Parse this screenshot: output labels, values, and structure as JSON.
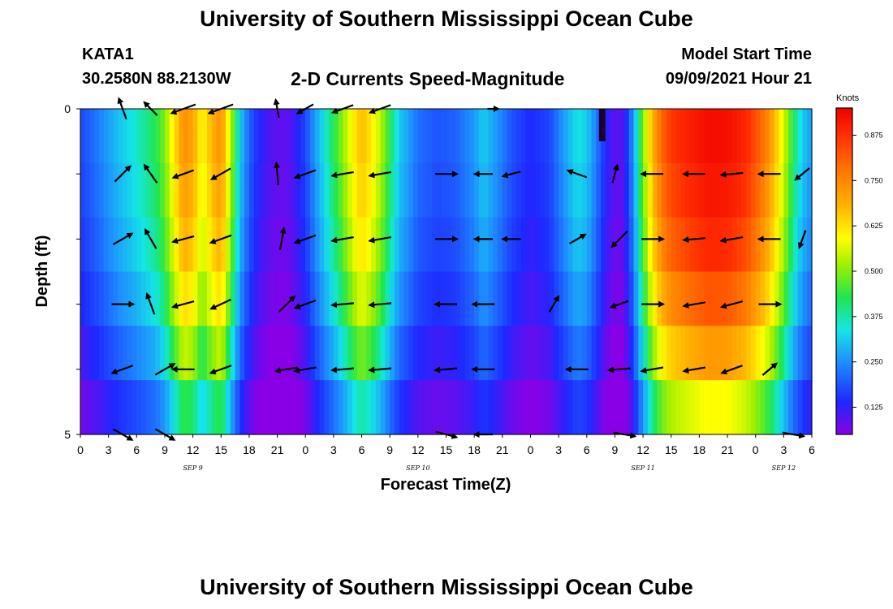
{
  "header": {
    "title": "University of Southern Mississippi Ocean Cube",
    "station_id": "KATA1",
    "station_coords": "30.2580N  88.2130W",
    "chart_title": "2-D Currents Speed-Magnitude",
    "model_start_label": "Model Start Time",
    "model_start_value": "09/09/2021 Hour 21"
  },
  "footer": {
    "title": "University of Southern Mississippi Ocean Cube"
  },
  "chart_data": {
    "type": "heatmap",
    "title": "2-D Currents Speed-Magnitude",
    "xlabel": "Forecast Time(Z)",
    "ylabel": "Depth (ft)",
    "x_tick_labels": [
      "0",
      "3",
      "6",
      "9",
      "12",
      "15",
      "18",
      "21",
      "0",
      "3",
      "6",
      "9",
      "12",
      "15",
      "18",
      "21",
      "0",
      "3",
      "6",
      "9",
      "12",
      "15",
      "18",
      "21",
      "0",
      "3",
      "6"
    ],
    "x_range_hours": [
      0,
      78
    ],
    "date_labels": [
      {
        "label": "SEP 9",
        "hour": 12
      },
      {
        "label": "SEP 10",
        "hour": 36
      },
      {
        "label": "SEP 11",
        "hour": 60
      },
      {
        "label": "SEP 12",
        "hour": 75
      }
    ],
    "y_tick_labels": [
      "0",
      "5"
    ],
    "y_range": [
      0,
      5
    ],
    "depth_levels": [
      0,
      1,
      2,
      3,
      4,
      5
    ],
    "colorbar": {
      "label": "Knots",
      "ticks": [
        "0.125",
        "0.250",
        "0.375",
        "0.500",
        "0.625",
        "0.750",
        "0.875"
      ],
      "range": [
        0.05,
        0.95
      ]
    },
    "speed_profile_knots": [
      [
        0,
        0.12
      ],
      [
        2,
        0.16
      ],
      [
        4,
        0.21
      ],
      [
        6,
        0.25
      ],
      [
        8,
        0.3
      ],
      [
        9,
        0.36
      ],
      [
        10,
        0.48
      ],
      [
        11,
        0.62
      ],
      [
        12,
        0.58
      ],
      [
        13,
        0.45
      ],
      [
        14,
        0.55
      ],
      [
        15,
        0.62
      ],
      [
        16,
        0.4
      ],
      [
        17,
        0.22
      ],
      [
        18,
        0.14
      ],
      [
        19,
        0.1
      ],
      [
        20,
        0.08
      ],
      [
        21,
        0.07
      ],
      [
        22,
        0.07
      ],
      [
        23,
        0.09
      ],
      [
        24,
        0.12
      ],
      [
        25,
        0.18
      ],
      [
        26,
        0.24
      ],
      [
        27,
        0.3
      ],
      [
        28,
        0.37
      ],
      [
        29,
        0.46
      ],
      [
        30,
        0.54
      ],
      [
        31,
        0.48
      ],
      [
        32,
        0.4
      ],
      [
        33,
        0.3
      ],
      [
        34,
        0.22
      ],
      [
        36,
        0.15
      ],
      [
        38,
        0.13
      ],
      [
        40,
        0.14
      ],
      [
        42,
        0.18
      ],
      [
        43,
        0.22
      ],
      [
        44,
        0.19
      ],
      [
        46,
        0.13
      ],
      [
        48,
        0.1
      ],
      [
        50,
        0.12
      ],
      [
        52,
        0.2
      ],
      [
        53,
        0.24
      ],
      [
        54,
        0.22
      ],
      [
        55,
        0.16
      ],
      [
        56,
        0.1
      ],
      [
        57,
        0.07
      ],
      [
        58,
        0.08
      ],
      [
        59,
        0.18
      ],
      [
        60,
        0.36
      ],
      [
        61,
        0.55
      ],
      [
        62,
        0.7
      ],
      [
        63,
        0.78
      ],
      [
        65,
        0.85
      ],
      [
        67,
        0.91
      ],
      [
        69,
        0.9
      ],
      [
        71,
        0.82
      ],
      [
        72,
        0.74
      ],
      [
        73,
        0.66
      ],
      [
        74,
        0.55
      ],
      [
        75,
        0.42
      ],
      [
        76,
        0.3
      ],
      [
        77,
        0.22
      ],
      [
        78,
        0.18
      ]
    ],
    "depth_factor": [
      1.0,
      0.96,
      0.9,
      0.8,
      0.66,
      0.5
    ],
    "vectors": [
      {
        "hour": 4.5,
        "depth": 0,
        "angle": 110,
        "len": 0.6
      },
      {
        "hour": 7.5,
        "depth": 0,
        "angle": 135,
        "len": 0.5
      },
      {
        "hour": 11,
        "depth": 0,
        "angle": 200,
        "len": 0.7
      },
      {
        "hour": 15,
        "depth": 0,
        "angle": 200,
        "len": 0.7
      },
      {
        "hour": 21,
        "depth": 0,
        "angle": 100,
        "len": 0.5
      },
      {
        "hour": 24,
        "depth": 0,
        "angle": 210,
        "len": 0.5
      },
      {
        "hour": 28,
        "depth": 0,
        "angle": 200,
        "len": 0.6
      },
      {
        "hour": 32,
        "depth": 0,
        "angle": 200,
        "len": 0.6
      },
      {
        "hour": 44,
        "depth": 0,
        "angle": 0,
        "len": 0.3
      },
      {
        "hour": 4.5,
        "depth": 1,
        "angle": 45,
        "len": 0.6
      },
      {
        "hour": 7.5,
        "depth": 1,
        "angle": 125,
        "len": 0.6
      },
      {
        "hour": 11,
        "depth": 1,
        "angle": 200,
        "len": 0.6
      },
      {
        "hour": 15,
        "depth": 1,
        "angle": 210,
        "len": 0.6
      },
      {
        "hour": 21,
        "depth": 1,
        "angle": 95,
        "len": 0.6
      },
      {
        "hour": 24,
        "depth": 1,
        "angle": 200,
        "len": 0.6
      },
      {
        "hour": 28,
        "depth": 1,
        "angle": 190,
        "len": 0.6
      },
      {
        "hour": 32,
        "depth": 1,
        "angle": 190,
        "len": 0.6
      },
      {
        "hour": 39,
        "depth": 1,
        "angle": 0,
        "len": 0.6
      },
      {
        "hour": 43,
        "depth": 1,
        "angle": 180,
        "len": 0.5
      },
      {
        "hour": 46,
        "depth": 1,
        "angle": 195,
        "len": 0.5
      },
      {
        "hour": 53,
        "depth": 1,
        "angle": 160,
        "len": 0.55
      },
      {
        "hour": 57,
        "depth": 1,
        "angle": 75,
        "len": 0.5
      },
      {
        "hour": 61,
        "depth": 1,
        "angle": 180,
        "len": 0.6
      },
      {
        "hour": 65.5,
        "depth": 1,
        "angle": 180,
        "len": 0.6
      },
      {
        "hour": 69.5,
        "depth": 1,
        "angle": 185,
        "len": 0.6
      },
      {
        "hour": 73.5,
        "depth": 1,
        "angle": 180,
        "len": 0.6
      },
      {
        "hour": 77,
        "depth": 1,
        "angle": 220,
        "len": 0.5
      },
      {
        "hour": 4.5,
        "depth": 2,
        "angle": 30,
        "len": 0.6
      },
      {
        "hour": 7.5,
        "depth": 2,
        "angle": 120,
        "len": 0.6
      },
      {
        "hour": 11,
        "depth": 2,
        "angle": 195,
        "len": 0.6
      },
      {
        "hour": 15,
        "depth": 2,
        "angle": 200,
        "len": 0.6
      },
      {
        "hour": 21.5,
        "depth": 2,
        "angle": 80,
        "len": 0.6
      },
      {
        "hour": 24,
        "depth": 2,
        "angle": 200,
        "len": 0.6
      },
      {
        "hour": 28,
        "depth": 2,
        "angle": 190,
        "len": 0.6
      },
      {
        "hour": 32,
        "depth": 2,
        "angle": 190,
        "len": 0.6
      },
      {
        "hour": 39,
        "depth": 2,
        "angle": 0,
        "len": 0.6
      },
      {
        "hour": 43,
        "depth": 2,
        "angle": 180,
        "len": 0.5
      },
      {
        "hour": 46,
        "depth": 2,
        "angle": 180,
        "len": 0.5
      },
      {
        "hour": 53,
        "depth": 2,
        "angle": 30,
        "len": 0.5
      },
      {
        "hour": 57.5,
        "depth": 2,
        "angle": 225,
        "len": 0.6
      },
      {
        "hour": 61,
        "depth": 2,
        "angle": 0,
        "len": 0.6
      },
      {
        "hour": 65.5,
        "depth": 2,
        "angle": 185,
        "len": 0.6
      },
      {
        "hour": 69.5,
        "depth": 2,
        "angle": 190,
        "len": 0.6
      },
      {
        "hour": 73.5,
        "depth": 2,
        "angle": 180,
        "len": 0.6
      },
      {
        "hour": 77,
        "depth": 2,
        "angle": 250,
        "len": 0.5
      },
      {
        "hour": 4.5,
        "depth": 3,
        "angle": 0,
        "len": 0.6
      },
      {
        "hour": 7.5,
        "depth": 3,
        "angle": 110,
        "len": 0.6
      },
      {
        "hour": 11,
        "depth": 3,
        "angle": 195,
        "len": 0.6
      },
      {
        "hour": 15,
        "depth": 3,
        "angle": 205,
        "len": 0.6
      },
      {
        "hour": 22,
        "depth": 3,
        "angle": 45,
        "len": 0.6
      },
      {
        "hour": 24,
        "depth": 3,
        "angle": 200,
        "len": 0.6
      },
      {
        "hour": 28,
        "depth": 3,
        "angle": 185,
        "len": 0.6
      },
      {
        "hour": 32,
        "depth": 3,
        "angle": 185,
        "len": 0.6
      },
      {
        "hour": 39,
        "depth": 3,
        "angle": 180,
        "len": 0.6
      },
      {
        "hour": 43,
        "depth": 3,
        "angle": 180,
        "len": 0.6
      },
      {
        "hour": 50.5,
        "depth": 3,
        "angle": 60,
        "len": 0.5
      },
      {
        "hour": 57.5,
        "depth": 3,
        "angle": 200,
        "len": 0.5
      },
      {
        "hour": 61,
        "depth": 3,
        "angle": 0,
        "len": 0.6
      },
      {
        "hour": 65.5,
        "depth": 3,
        "angle": 190,
        "len": 0.6
      },
      {
        "hour": 69.5,
        "depth": 3,
        "angle": 195,
        "len": 0.6
      },
      {
        "hour": 73.5,
        "depth": 3,
        "angle": 0,
        "len": 0.6
      },
      {
        "hour": 4.5,
        "depth": 4,
        "angle": 200,
        "len": 0.6
      },
      {
        "hour": 9,
        "depth": 4,
        "angle": 30,
        "len": 0.6
      },
      {
        "hour": 11,
        "depth": 4,
        "angle": 180,
        "len": 0.6
      },
      {
        "hour": 15,
        "depth": 4,
        "angle": 200,
        "len": 0.6
      },
      {
        "hour": 22,
        "depth": 4,
        "angle": 190,
        "len": 0.6
      },
      {
        "hour": 24,
        "depth": 4,
        "angle": 190,
        "len": 0.6
      },
      {
        "hour": 28,
        "depth": 4,
        "angle": 185,
        "len": 0.6
      },
      {
        "hour": 32,
        "depth": 4,
        "angle": 185,
        "len": 0.6
      },
      {
        "hour": 39,
        "depth": 4,
        "angle": 185,
        "len": 0.6
      },
      {
        "hour": 43,
        "depth": 4,
        "angle": 180,
        "len": 0.6
      },
      {
        "hour": 53,
        "depth": 4,
        "angle": 180,
        "len": 0.6
      },
      {
        "hour": 57.5,
        "depth": 4,
        "angle": 185,
        "len": 0.6
      },
      {
        "hour": 61,
        "depth": 4,
        "angle": 190,
        "len": 0.6
      },
      {
        "hour": 65.5,
        "depth": 4,
        "angle": 190,
        "len": 0.6
      },
      {
        "hour": 69.5,
        "depth": 4,
        "angle": 200,
        "len": 0.6
      },
      {
        "hour": 73.5,
        "depth": 4,
        "angle": 40,
        "len": 0.5
      },
      {
        "hour": 4.5,
        "depth": 5,
        "angle": 330,
        "len": 0.6
      },
      {
        "hour": 9,
        "depth": 5,
        "angle": 330,
        "len": 0.6
      },
      {
        "hour": 39,
        "depth": 5,
        "angle": 345,
        "len": 0.6
      },
      {
        "hour": 43,
        "depth": 5,
        "angle": 180,
        "len": 0.5
      },
      {
        "hour": 58,
        "depth": 5,
        "angle": 350,
        "len": 0.6
      },
      {
        "hour": 76,
        "depth": 5,
        "angle": 350,
        "len": 0.6
      }
    ]
  }
}
